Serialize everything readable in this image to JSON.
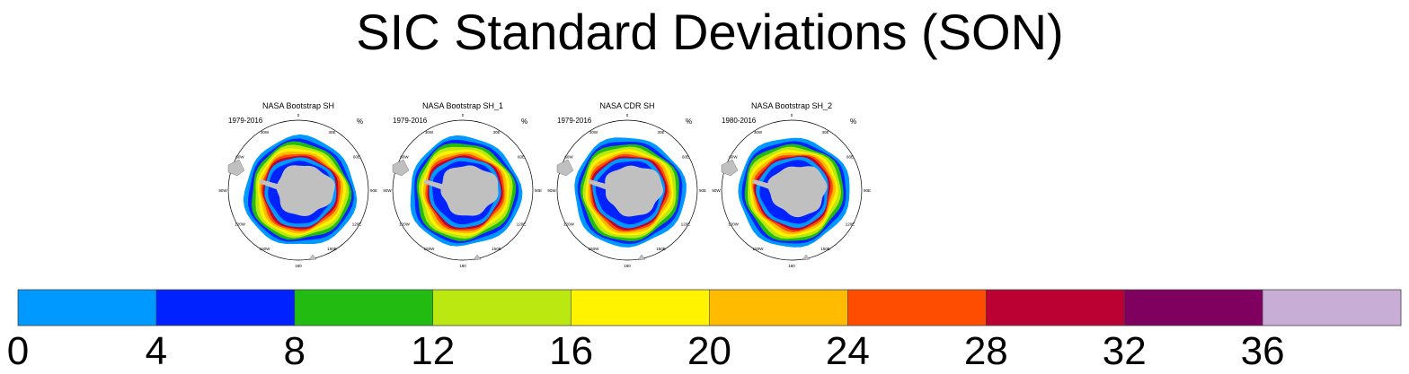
{
  "title": "SIC Standard Deviations (SON)",
  "colors": {
    "land": "#c0c0c0",
    "ocean_bg": "#ffffff",
    "frame": "#000000"
  },
  "chart_data": {
    "type": "heatmap",
    "projection": "south-polar-stereographic",
    "units": "%",
    "panels": [
      {
        "title": "NASA Bootstrap SH",
        "period": "1979-2016",
        "units": "%"
      },
      {
        "title": "NASA Bootstrap SH_1",
        "period": "1979-2016",
        "units": "%"
      },
      {
        "title": "NASA CDR SH",
        "period": "1979-2016",
        "units": "%"
      },
      {
        "title": "NASA Bootstrap SH_2",
        "period": "1980-2016",
        "units": "%"
      }
    ],
    "longitude_labels": [
      "0",
      "30E",
      "60E",
      "90E",
      "120E",
      "150E",
      "180",
      "150W",
      "120W",
      "90W",
      "60W",
      "30W"
    ],
    "colorbar": {
      "levels": [
        0,
        4,
        8,
        12,
        16,
        20,
        24,
        28,
        32,
        36
      ],
      "tick_labels": [
        "0",
        "4",
        "8",
        "12",
        "16",
        "20",
        "24",
        "28",
        "32",
        "36"
      ],
      "colors": [
        "#0099ff",
        "#0022ff",
        "#22bb11",
        "#bbe811",
        "#fff300",
        "#ffbb00",
        "#ff4d00",
        "#bb0033",
        "#800060",
        "#c8aed6"
      ]
    }
  }
}
